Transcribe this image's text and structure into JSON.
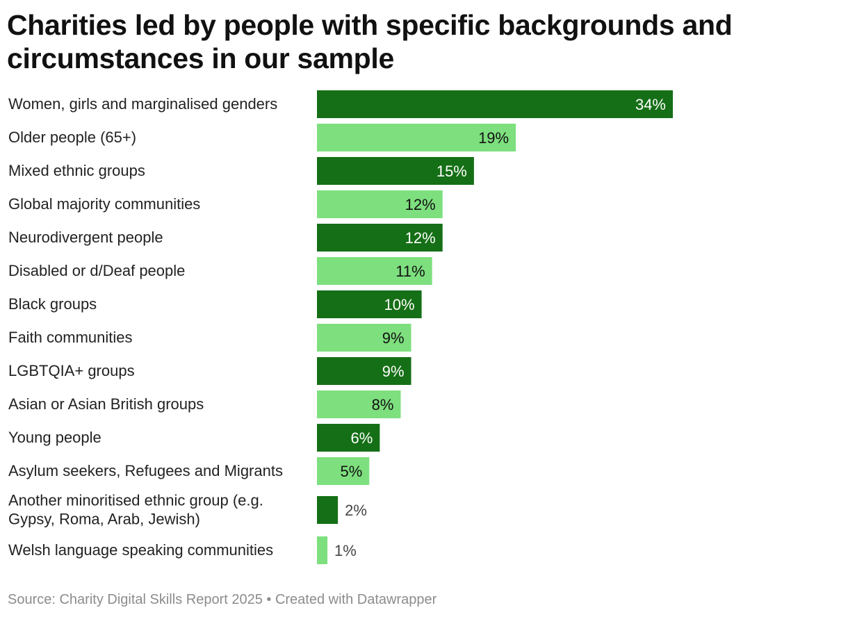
{
  "chart_data": {
    "type": "bar",
    "orientation": "horizontal",
    "title": "Charities led by people with specific backgrounds and circumstances in our sample",
    "categories": [
      "Women, girls and marginalised genders",
      "Older people (65+)",
      "Mixed ethnic groups",
      "Global majority communities",
      "Neurodivergent people",
      "Disabled or d/Deaf people",
      "Black groups",
      "Faith communities",
      "LGBTQIA+ groups",
      "Asian or Asian British groups",
      "Young people",
      "Asylum seekers, Refugees and Migrants",
      "Another minoritised ethnic group (e.g. Gypsy, Roma, Arab, Jewish)",
      "Welsh language speaking communities"
    ],
    "values": [
      34,
      19,
      15,
      12,
      12,
      11,
      10,
      9,
      9,
      8,
      6,
      5,
      2,
      1
    ],
    "value_labels": [
      "34%",
      "19%",
      "15%",
      "12%",
      "12%",
      "11%",
      "10%",
      "9%",
      "9%",
      "8%",
      "6%",
      "5%",
      "2%",
      "1%"
    ],
    "unit": "%",
    "xlim": [
      0,
      34
    ],
    "xlabel": "",
    "ylabel": "",
    "colors": {
      "dark_bar": "#156f16",
      "light_bar": "#7ddf7e",
      "label_on_dark": "#ffffff",
      "label_on_light": "#111111",
      "label_outside": "#444444"
    }
  },
  "source": "Source: Charity Digital Skills Report 2025 • Created with Datawrapper"
}
